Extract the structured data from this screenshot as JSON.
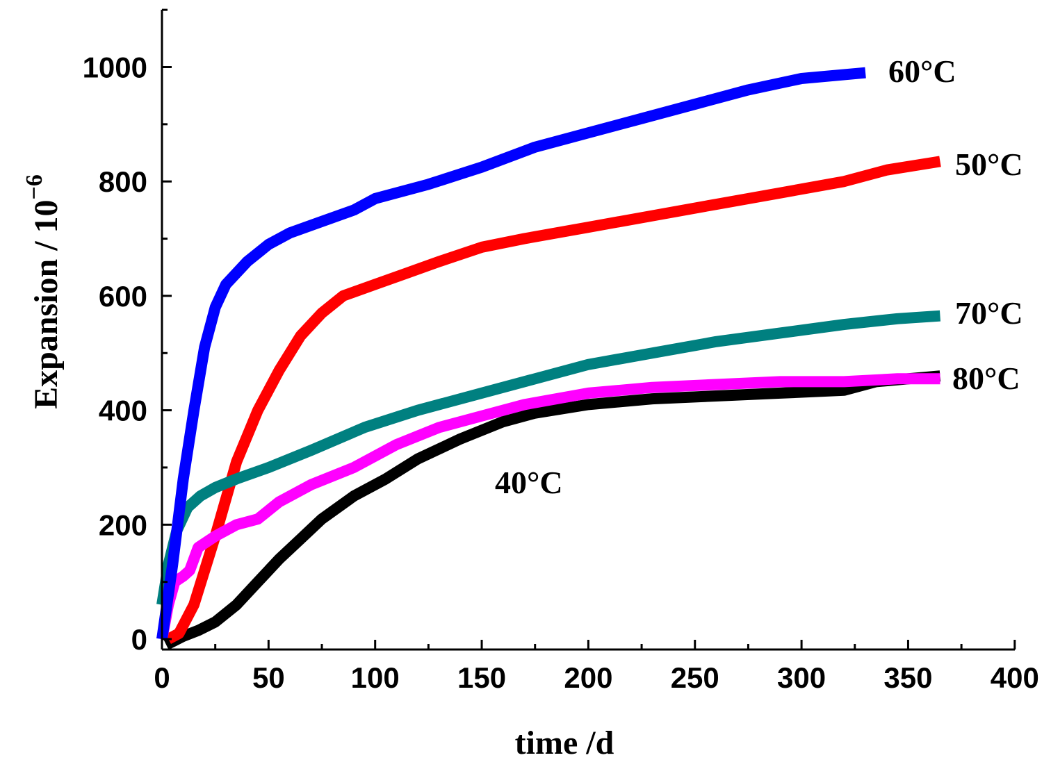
{
  "chart_data": {
    "type": "line",
    "title": "",
    "xlabel": "time /d",
    "ylabel_main": "Expansion / 10",
    "ylabel_exp": "−6",
    "xlim": [
      0,
      400
    ],
    "ylim": [
      -10,
      1100
    ],
    "xticks": [
      0,
      50,
      100,
      150,
      200,
      250,
      300,
      350,
      400
    ],
    "yticks": [
      0,
      200,
      400,
      600,
      800,
      1000
    ],
    "series": [
      {
        "name": "40°C",
        "label": "40°C",
        "color": "#000000",
        "x": [
          2,
          10,
          17,
          25,
          35,
          45,
          55,
          65,
          75,
          90,
          105,
          120,
          140,
          160,
          175,
          200,
          230,
          260,
          290,
          320,
          335,
          365
        ],
        "y": [
          -10,
          5,
          15,
          30,
          60,
          100,
          140,
          175,
          210,
          250,
          280,
          315,
          350,
          380,
          395,
          410,
          420,
          425,
          430,
          435,
          450,
          460
        ]
      },
      {
        "name": "50°C",
        "label": "50°C",
        "color": "#ff0000",
        "x": [
          3,
          8,
          15,
          25,
          35,
          45,
          55,
          65,
          75,
          85,
          100,
          115,
          130,
          150,
          170,
          200,
          230,
          260,
          290,
          320,
          340,
          365
        ],
        "y": [
          0,
          10,
          60,
          180,
          310,
          400,
          470,
          530,
          570,
          600,
          620,
          640,
          660,
          685,
          700,
          720,
          740,
          760,
          780,
          800,
          820,
          835
        ]
      },
      {
        "name": "60°C",
        "label": "60°C",
        "color": "#0000ff",
        "x": [
          0,
          5,
          10,
          15,
          20,
          25,
          30,
          40,
          50,
          60,
          75,
          90,
          100,
          125,
          150,
          175,
          200,
          225,
          250,
          275,
          300,
          330
        ],
        "y": [
          0,
          130,
          280,
          400,
          510,
          580,
          620,
          660,
          690,
          710,
          730,
          750,
          770,
          795,
          825,
          860,
          885,
          910,
          935,
          960,
          980,
          990
        ]
      },
      {
        "name": "70°C",
        "label": "70°C",
        "color": "#008080",
        "x": [
          0,
          3,
          7,
          12,
          18,
          25,
          35,
          50,
          70,
          95,
          120,
          150,
          170,
          200,
          230,
          260,
          290,
          320,
          345,
          365
        ],
        "y": [
          60,
          130,
          190,
          230,
          250,
          265,
          280,
          300,
          330,
          370,
          400,
          430,
          450,
          480,
          500,
          520,
          535,
          550,
          560,
          565
        ]
      },
      {
        "name": "80°C",
        "label": "80°C",
        "color": "#ff00ff",
        "x": [
          0,
          3,
          6,
          10,
          13,
          17,
          25,
          35,
          45,
          55,
          70,
          90,
          110,
          130,
          150,
          170,
          200,
          230,
          260,
          290,
          320,
          345,
          365
        ],
        "y": [
          0,
          60,
          100,
          110,
          120,
          160,
          180,
          200,
          210,
          240,
          270,
          300,
          340,
          370,
          390,
          410,
          430,
          440,
          445,
          450,
          450,
          455,
          455
        ]
      }
    ]
  }
}
